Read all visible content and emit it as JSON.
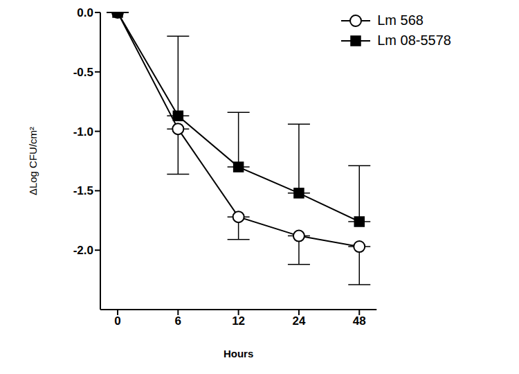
{
  "chart_data": {
    "type": "line",
    "x_label": "Hours",
    "y_label": "ΔLog CFU/cm²",
    "categories": [
      "0",
      "6",
      "12",
      "24",
      "48"
    ],
    "series": [
      {
        "name": "Lm 568",
        "color": "#000000",
        "marker": "circle_open",
        "values": [
          0,
          -0.98,
          -1.72,
          -1.88,
          -1.97
        ],
        "error_minus": [
          0,
          0.38,
          0.19,
          0.24,
          0.32
        ],
        "error_plus": [
          0,
          0,
          0,
          0,
          0
        ]
      },
      {
        "name": "Lm 08-5578",
        "color": "#000000",
        "marker": "square",
        "values": [
          0,
          -0.87,
          -1.3,
          -1.52,
          -1.76
        ],
        "error_minus": [
          0,
          0,
          0,
          0,
          0
        ],
        "error_plus": [
          0,
          0.67,
          0.46,
          0.58,
          0.47
        ]
      }
    ],
    "ylim": [
      -2.5,
      0
    ],
    "yticks": [
      {
        "value": 0,
        "label": "0.0"
      },
      -0.5,
      {
        "value": -1,
        "label": "-1.0"
      },
      -1.5,
      {
        "value": -2,
        "label": "-2.0"
      }
    ],
    "grid": false,
    "legend": "upper right"
  }
}
